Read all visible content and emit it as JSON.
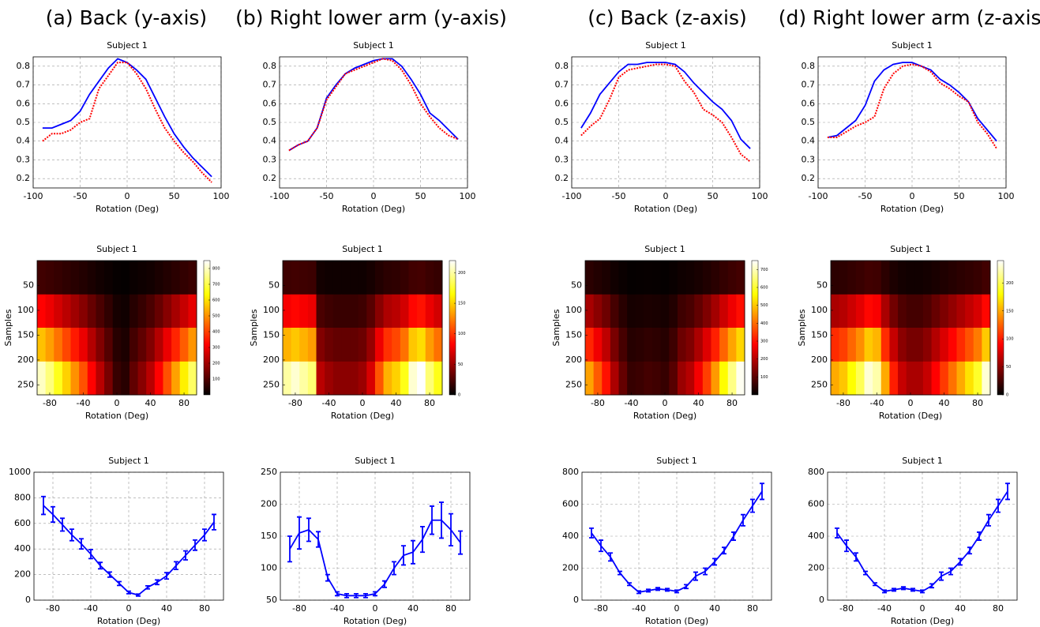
{
  "column_titles": [
    "(a) Back (y-axis)",
    "(b) Right lower arm (y-axis)",
    "(c) Back (z-axis)",
    "(d) Right lower arm (z-axis)"
  ],
  "chart_data": [
    {
      "type": "line",
      "title": "Subject 1",
      "xlabel": "Rotation (Deg)",
      "x": [
        -90,
        -80,
        -70,
        -60,
        -50,
        -40,
        -30,
        -20,
        -10,
        0,
        10,
        20,
        30,
        40,
        50,
        60,
        70,
        80,
        90
      ],
      "series": [
        {
          "color": "#0000ff",
          "style": "solid",
          "values": [
            0.47,
            0.47,
            0.49,
            0.51,
            0.56,
            0.65,
            0.72,
            0.79,
            0.84,
            0.82,
            0.78,
            0.73,
            0.63,
            0.53,
            0.44,
            0.37,
            0.31,
            0.26,
            0.21
          ]
        },
        {
          "color": "#ff0000",
          "style": "dotted",
          "values": [
            0.4,
            0.44,
            0.44,
            0.46,
            0.5,
            0.52,
            0.68,
            0.75,
            0.82,
            0.82,
            0.76,
            0.68,
            0.57,
            0.47,
            0.4,
            0.34,
            0.29,
            0.23,
            0.18
          ]
        }
      ],
      "xlim": [
        -100,
        100
      ],
      "xticks": [
        -100,
        -50,
        0,
        50,
        100
      ],
      "ylim": [
        0.15,
        0.85
      ],
      "yticks": [
        0.2,
        0.3,
        0.4,
        0.5,
        0.6,
        0.7,
        0.8
      ],
      "grid": true
    },
    {
      "type": "line",
      "title": "Subject 1",
      "xlabel": "Rotation (Deg)",
      "x": [
        -90,
        -80,
        -70,
        -60,
        -50,
        -40,
        -30,
        -20,
        -10,
        0,
        10,
        20,
        30,
        40,
        50,
        60,
        70,
        80,
        90
      ],
      "series": [
        {
          "color": "#0000ff",
          "style": "solid",
          "values": [
            0.35,
            0.38,
            0.4,
            0.47,
            0.63,
            0.7,
            0.76,
            0.79,
            0.81,
            0.83,
            0.84,
            0.84,
            0.8,
            0.73,
            0.65,
            0.55,
            0.51,
            0.46,
            0.41
          ]
        },
        {
          "color": "#ff0000",
          "style": "dotted",
          "values": [
            0.35,
            0.38,
            0.4,
            0.47,
            0.62,
            0.69,
            0.76,
            0.78,
            0.8,
            0.82,
            0.84,
            0.83,
            0.78,
            0.7,
            0.6,
            0.53,
            0.47,
            0.43,
            0.41
          ]
        }
      ],
      "xlim": [
        -100,
        100
      ],
      "xticks": [
        -100,
        -50,
        0,
        50,
        100
      ],
      "ylim": [
        0.15,
        0.85
      ],
      "yticks": [
        0.2,
        0.3,
        0.4,
        0.5,
        0.6,
        0.7,
        0.8
      ],
      "grid": true
    },
    {
      "type": "line",
      "title": "Subject 1",
      "xlabel": "Rotation (Deg)",
      "x": [
        -90,
        -80,
        -70,
        -60,
        -50,
        -40,
        -30,
        -20,
        -10,
        0,
        10,
        20,
        30,
        40,
        50,
        60,
        70,
        80,
        90
      ],
      "series": [
        {
          "color": "#0000ff",
          "style": "solid",
          "values": [
            0.47,
            0.55,
            0.65,
            0.71,
            0.77,
            0.81,
            0.81,
            0.82,
            0.82,
            0.82,
            0.81,
            0.77,
            0.71,
            0.66,
            0.61,
            0.57,
            0.51,
            0.41,
            0.36
          ]
        },
        {
          "color": "#ff0000",
          "style": "dotted",
          "values": [
            0.43,
            0.48,
            0.52,
            0.62,
            0.74,
            0.78,
            0.79,
            0.8,
            0.81,
            0.81,
            0.8,
            0.72,
            0.66,
            0.57,
            0.54,
            0.5,
            0.42,
            0.33,
            0.29
          ]
        }
      ],
      "xlim": [
        -100,
        100
      ],
      "xticks": [
        -100,
        -50,
        0,
        50,
        100
      ],
      "ylim": [
        0.15,
        0.85
      ],
      "yticks": [
        0.2,
        0.3,
        0.4,
        0.5,
        0.6,
        0.7,
        0.8
      ],
      "grid": true
    },
    {
      "type": "line",
      "title": "Subject 1",
      "xlabel": "Rotation (Deg)",
      "x": [
        -90,
        -80,
        -70,
        -60,
        -50,
        -40,
        -30,
        -20,
        -10,
        0,
        10,
        20,
        30,
        40,
        50,
        60,
        70,
        80,
        90
      ],
      "series": [
        {
          "color": "#0000ff",
          "style": "solid",
          "values": [
            0.42,
            0.43,
            0.47,
            0.51,
            0.59,
            0.72,
            0.78,
            0.81,
            0.82,
            0.82,
            0.8,
            0.78,
            0.73,
            0.7,
            0.66,
            0.61,
            0.52,
            0.46,
            0.4
          ]
        },
        {
          "color": "#ff0000",
          "style": "dotted",
          "values": [
            0.42,
            0.42,
            0.45,
            0.48,
            0.5,
            0.53,
            0.68,
            0.76,
            0.8,
            0.81,
            0.8,
            0.77,
            0.71,
            0.68,
            0.64,
            0.61,
            0.5,
            0.44,
            0.36
          ]
        }
      ],
      "xlim": [
        -100,
        100
      ],
      "xticks": [
        -100,
        -50,
        0,
        50,
        100
      ],
      "ylim": [
        0.15,
        0.85
      ],
      "yticks": [
        0.2,
        0.3,
        0.4,
        0.5,
        0.6,
        0.7,
        0.8
      ],
      "grid": true
    },
    {
      "type": "heatmap",
      "title": "Subject 1",
      "xlabel": "Rotation (Deg)",
      "ylabel": "Samples",
      "colormap": "hot",
      "x": [
        -90,
        -80,
        -70,
        -60,
        -50,
        -40,
        -30,
        -20,
        -10,
        0,
        10,
        20,
        30,
        40,
        50,
        60,
        70,
        80,
        90
      ],
      "y_bins": [
        0,
        68,
        135,
        203,
        270
      ],
      "z": [
        [
          80,
          74,
          66,
          58,
          50,
          42,
          32,
          23,
          15,
          7,
          5,
          12,
          17,
          23,
          32,
          42,
          52,
          62,
          72
        ],
        [
          320,
          296,
          264,
          232,
          200,
          168,
          128,
          92,
          60,
          28,
          20,
          48,
          68,
          92,
          128,
          168,
          208,
          248,
          288
        ],
        [
          560,
          518,
          462,
          406,
          350,
          294,
          224,
          161,
          105,
          49,
          35,
          84,
          119,
          161,
          224,
          294,
          364,
          434,
          504
        ],
        [
          800,
          740,
          660,
          580,
          500,
          420,
          320,
          230,
          150,
          70,
          50,
          120,
          170,
          230,
          320,
          420,
          520,
          620,
          720
        ]
      ],
      "xlim": [
        -95,
        95
      ],
      "xticks": [
        -80,
        -40,
        0,
        40,
        80
      ],
      "ylim": [
        0,
        270
      ],
      "yticks": [
        50,
        100,
        150,
        200,
        250
      ],
      "clim": [
        0,
        850
      ],
      "cticks": [
        100,
        200,
        300,
        400,
        500,
        600,
        700,
        800
      ]
    },
    {
      "type": "heatmap",
      "title": "Subject 1",
      "xlabel": "Rotation (Deg)",
      "ylabel": "Samples",
      "colormap": "hot",
      "x": [
        -90,
        -80,
        -70,
        -60,
        -50,
        -40,
        -30,
        -20,
        -10,
        0,
        10,
        20,
        30,
        40,
        50,
        60,
        70,
        80,
        90
      ],
      "y_bins": [
        0,
        68,
        135,
        203,
        270
      ],
      "z": [
        [
          20,
          21,
          20,
          19,
          6,
          5,
          5,
          5,
          5,
          5,
          7,
          11,
          14,
          15,
          17,
          21,
          22,
          19,
          17
        ],
        [
          80,
          84,
          80,
          76,
          24,
          20,
          18,
          18,
          18,
          20,
          28,
          44,
          56,
          60,
          68,
          84,
          88,
          76,
          68
        ],
        [
          140,
          147,
          140,
          133,
          42,
          35,
          32,
          32,
          32,
          35,
          49,
          77,
          98,
          105,
          119,
          147,
          154,
          133,
          119
        ],
        [
          200,
          210,
          200,
          190,
          60,
          50,
          45,
          45,
          45,
          50,
          70,
          110,
          140,
          150,
          170,
          210,
          220,
          190,
          170
        ]
      ],
      "xlim": [
        -95,
        95
      ],
      "xticks": [
        -80,
        -40,
        0,
        40,
        80
      ],
      "ylim": [
        0,
        270
      ],
      "yticks": [
        50,
        100,
        150,
        200,
        250
      ],
      "clim": [
        0,
        220
      ],
      "cticks": [
        0,
        50,
        100,
        150,
        200
      ]
    },
    {
      "type": "heatmap",
      "title": "Subject 1",
      "xlabel": "Rotation (Deg)",
      "ylabel": "Samples",
      "colormap": "hot",
      "x": [
        -90,
        -80,
        -70,
        -60,
        -50,
        -40,
        -30,
        -20,
        -10,
        0,
        10,
        20,
        30,
        40,
        50,
        60,
        70,
        80,
        90
      ],
      "y_bins": [
        0,
        68,
        135,
        203,
        270
      ],
      "z": [
        [
          46,
          38,
          30,
          19,
          11,
          6,
          7,
          8,
          7,
          6,
          10,
          17,
          20,
          27,
          35,
          45,
          56,
          66,
          74
        ],
        [
          184,
          152,
          120,
          76,
          44,
          24,
          26,
          30,
          28,
          24,
          38,
          68,
          80,
          108,
          140,
          180,
          224,
          264,
          296
        ],
        [
          322,
          266,
          210,
          133,
          77,
          42,
          46,
          53,
          49,
          42,
          67,
          119,
          140,
          189,
          245,
          315,
          392,
          462,
          518
        ],
        [
          460,
          380,
          300,
          190,
          110,
          60,
          65,
          75,
          70,
          60,
          95,
          170,
          200,
          270,
          350,
          450,
          560,
          660,
          740
        ]
      ],
      "xlim": [
        -95,
        95
      ],
      "xticks": [
        -80,
        -40,
        0,
        40,
        80
      ],
      "ylim": [
        0,
        270
      ],
      "yticks": [
        50,
        100,
        150,
        200,
        250
      ],
      "clim": [
        0,
        750
      ],
      "cticks": [
        100,
        200,
        300,
        400,
        500,
        600,
        700
      ]
    },
    {
      "type": "heatmap",
      "title": "Subject 1",
      "xlabel": "Rotation (Deg)",
      "ylabel": "Samples",
      "colormap": "hot",
      "x": [
        -90,
        -80,
        -70,
        -60,
        -50,
        -40,
        -30,
        -20,
        -10,
        0,
        10,
        20,
        30,
        40,
        50,
        60,
        70,
        80,
        90
      ],
      "y_bins": [
        0,
        68,
        135,
        203,
        270
      ],
      "z": [
        [
          15,
          16,
          18,
          20,
          23,
          22,
          15,
          10,
          7,
          6,
          6,
          7,
          9,
          11,
          13,
          15,
          17,
          19,
          23
        ],
        [
          60,
          64,
          72,
          80,
          92,
          88,
          60,
          40,
          28,
          24,
          24,
          28,
          36,
          44,
          52,
          60,
          68,
          76,
          92
        ],
        [
          105,
          112,
          126,
          140,
          161,
          154,
          105,
          70,
          49,
          42,
          42,
          49,
          63,
          77,
          91,
          105,
          119,
          133,
          161
        ],
        [
          150,
          160,
          180,
          200,
          230,
          220,
          150,
          100,
          70,
          60,
          60,
          70,
          90,
          110,
          130,
          150,
          170,
          190,
          230
        ]
      ],
      "xlim": [
        -95,
        95
      ],
      "xticks": [
        -80,
        -40,
        0,
        40,
        80
      ],
      "ylim": [
        0,
        270
      ],
      "yticks": [
        50,
        100,
        150,
        200,
        250
      ],
      "clim": [
        0,
        240
      ],
      "cticks": [
        0,
        50,
        100,
        150,
        200
      ]
    },
    {
      "type": "errorbar",
      "title": "Subject 1",
      "xlabel": "Rotation (Deg)",
      "color": "#0000ff",
      "x": [
        -90,
        -80,
        -70,
        -60,
        -50,
        -40,
        -30,
        -20,
        -10,
        0,
        10,
        20,
        30,
        40,
        50,
        60,
        70,
        80,
        90
      ],
      "values": [
        740,
        670,
        590,
        510,
        440,
        360,
        270,
        200,
        130,
        60,
        40,
        100,
        140,
        190,
        270,
        350,
        430,
        510,
        610
      ],
      "errors": [
        70,
        60,
        50,
        45,
        40,
        35,
        25,
        20,
        15,
        10,
        8,
        12,
        18,
        25,
        30,
        35,
        40,
        45,
        60
      ],
      "xlim": [
        -100,
        100
      ],
      "xticks": [
        -80,
        -40,
        0,
        40,
        80
      ],
      "ylim": [
        0,
        1000
      ],
      "yticks": [
        0,
        200,
        400,
        600,
        800,
        1000
      ],
      "grid": true
    },
    {
      "type": "errorbar",
      "title": "Subject 1",
      "xlabel": "Rotation (Deg)",
      "color": "#0000ff",
      "x": [
        -90,
        -80,
        -70,
        -60,
        -50,
        -40,
        -30,
        -20,
        -10,
        0,
        10,
        20,
        30,
        40,
        50,
        60,
        70,
        80,
        90
      ],
      "values": [
        130,
        155,
        160,
        145,
        85,
        60,
        57,
        57,
        57,
        60,
        75,
        100,
        120,
        125,
        145,
        175,
        175,
        160,
        140
      ],
      "errors": [
        20,
        25,
        18,
        12,
        5,
        3,
        3,
        3,
        3,
        3,
        5,
        10,
        15,
        18,
        20,
        22,
        28,
        25,
        18
      ],
      "xlim": [
        -100,
        100
      ],
      "xticks": [
        -80,
        -40,
        0,
        40,
        80
      ],
      "ylim": [
        50,
        250
      ],
      "yticks": [
        50,
        100,
        150,
        200,
        250
      ],
      "grid": true
    },
    {
      "type": "errorbar",
      "title": "Subject 1",
      "xlabel": "Rotation (Deg)",
      "color": "#0000ff",
      "x": [
        -90,
        -80,
        -70,
        -60,
        -50,
        -40,
        -30,
        -20,
        -10,
        0,
        10,
        20,
        30,
        40,
        50,
        60,
        70,
        80,
        90
      ],
      "values": [
        420,
        340,
        270,
        170,
        100,
        50,
        60,
        70,
        65,
        55,
        85,
        150,
        180,
        240,
        310,
        400,
        500,
        590,
        680
      ],
      "errors": [
        30,
        35,
        25,
        10,
        8,
        8,
        8,
        8,
        8,
        8,
        12,
        25,
        20,
        20,
        20,
        25,
        35,
        40,
        50
      ],
      "xlim": [
        -100,
        100
      ],
      "xticks": [
        -80,
        -40,
        0,
        40,
        80
      ],
      "ylim": [
        0,
        800
      ],
      "yticks": [
        0,
        200,
        400,
        600,
        800
      ],
      "grid": true
    },
    {
      "type": "errorbar",
      "title": "Subject 1",
      "xlabel": "Rotation (Deg)",
      "color": "#0000ff",
      "x": [
        -90,
        -80,
        -70,
        -60,
        -50,
        -40,
        -30,
        -20,
        -10,
        0,
        10,
        20,
        30,
        40,
        50,
        60,
        70,
        80,
        90
      ],
      "values": [
        420,
        340,
        270,
        170,
        100,
        55,
        65,
        75,
        65,
        55,
        90,
        150,
        180,
        240,
        310,
        400,
        500,
        590,
        680
      ],
      "errors": [
        30,
        35,
        25,
        10,
        8,
        8,
        8,
        8,
        8,
        8,
        12,
        25,
        20,
        20,
        20,
        25,
        35,
        40,
        50
      ],
      "xlim": [
        -100,
        100
      ],
      "xticks": [
        -80,
        -40,
        0,
        40,
        80
      ],
      "ylim": [
        0,
        800
      ],
      "yticks": [
        0,
        200,
        400,
        600,
        800
      ],
      "grid": true
    }
  ]
}
